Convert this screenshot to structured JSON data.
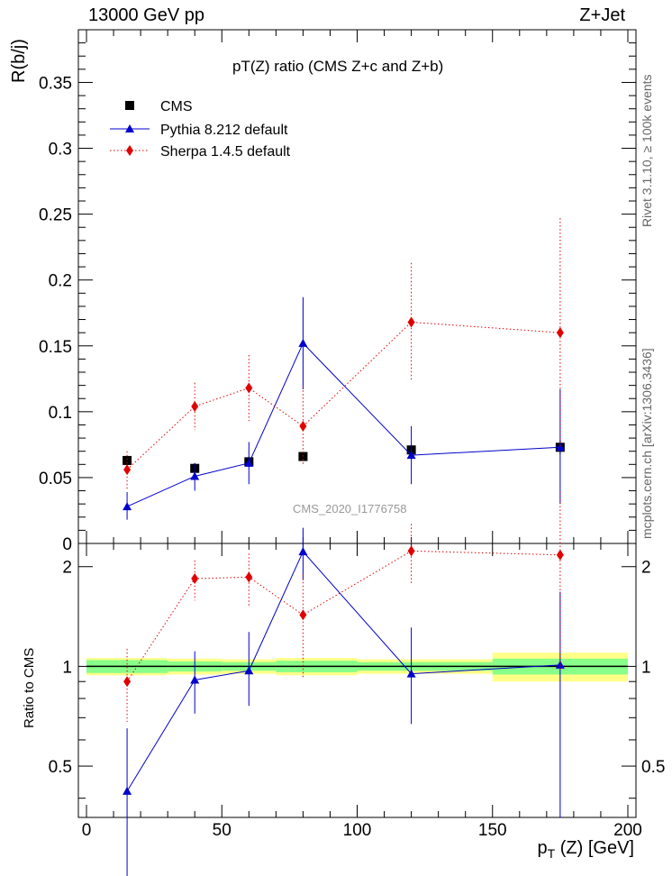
{
  "header": {
    "energy_label": "13000 GeV pp",
    "process_label": "Z+Jet"
  },
  "side_labels": {
    "rivet": "Rivet 3.1.10, ≥ 100k events",
    "mcplots": "mcplots.cern.ch [arXiv:1306.3436]"
  },
  "watermark": "CMS_2020_I1776758",
  "colors": {
    "cms": "#000000",
    "pythia": "#0000cc",
    "sherpa": "#e00000",
    "band_outer": "#ffff88",
    "band_inner": "#88ff88"
  },
  "chart_data": [
    {
      "type": "scatter",
      "panel": "main",
      "title": "pT(Z) ratio (CMS  Z+c and Z+b)",
      "xlabel": "p_T (Z) [GeV]",
      "ylabel": "R(b/j)",
      "xlim": [
        -3,
        203
      ],
      "ylim": [
        0,
        0.39
      ],
      "yticks": [
        0,
        0.05,
        0.1,
        0.15,
        0.2,
        0.25,
        0.3,
        0.35
      ],
      "ytick_labels": [
        "0",
        "0.05",
        "0.1",
        "0.15",
        "0.2",
        "0.25",
        "0.3",
        "0.35"
      ],
      "legend_position": "top-left",
      "series": [
        {
          "name": "CMS",
          "style": "square-marker",
          "x": [
            15,
            40,
            60,
            80,
            120,
            175
          ],
          "y": [
            0.063,
            0.057,
            0.062,
            0.066,
            0.071,
            0.073
          ],
          "yerr": [
            0.003,
            0.004,
            0.004,
            0.003,
            0.004,
            0.005
          ]
        },
        {
          "name": "Pythia 8.212 default",
          "style": "triangle-solid-line",
          "x": [
            15,
            40,
            60,
            80,
            120,
            175
          ],
          "y": [
            0.028,
            0.051,
            0.061,
            0.152,
            0.067,
            0.073
          ],
          "yerr_low": [
            0.01,
            0.011,
            0.016,
            0.035,
            0.022,
            0.043
          ],
          "yerr_high": [
            0.011,
            0.01,
            0.016,
            0.035,
            0.022,
            0.044
          ]
        },
        {
          "name": "Sherpa 1.4.5 default",
          "style": "diamond-dotted-line",
          "x": [
            15,
            40,
            60,
            80,
            120,
            175
          ],
          "y": [
            0.056,
            0.104,
            0.118,
            0.089,
            0.168,
            0.16
          ],
          "yerr_low": [
            0.015,
            0.018,
            0.025,
            0.03,
            0.044,
            0.086
          ],
          "yerr_high": [
            0.014,
            0.018,
            0.025,
            0.03,
            0.045,
            0.087
          ]
        }
      ]
    },
    {
      "type": "scatter",
      "panel": "ratio",
      "xlabel": "p_T (Z) [GeV]",
      "ylabel": "Ratio to CMS",
      "xlim": [
        -3,
        203
      ],
      "ylim": [
        0.35,
        2.35
      ],
      "yticks": [
        0.5,
        1,
        2
      ],
      "ytick_labels": [
        "0.5",
        "1",
        "2"
      ],
      "xticks": [
        0,
        50,
        100,
        150,
        200
      ],
      "xtick_labels": [
        "0",
        "50",
        "100",
        "150",
        "200"
      ],
      "bands": {
        "bin_edges": [
          0,
          30,
          50,
          70,
          100,
          150,
          200
        ],
        "inner_half_width": [
          0.045,
          0.035,
          0.03,
          0.04,
          0.03,
          0.055
        ],
        "outer_half_width": [
          0.06,
          0.055,
          0.05,
          0.06,
          0.05,
          0.1
        ]
      },
      "series": [
        {
          "name": "Pythia 8.212 default",
          "style": "triangle-solid-line",
          "x": [
            15,
            40,
            60,
            80,
            120,
            175
          ],
          "y": [
            0.42,
            0.91,
            0.97,
            2.22,
            0.95,
            1.01
          ],
          "yerr_low": [
            0.24,
            0.19,
            0.21,
            0.4,
            0.28,
            0.66
          ],
          "yerr_high": [
            0.23,
            0.2,
            0.3,
            0.4,
            0.36,
            0.67
          ]
        },
        {
          "name": "Sherpa 1.4.5 default",
          "style": "diamond-dotted-line",
          "x": [
            15,
            40,
            60,
            80,
            120,
            175
          ],
          "y": [
            0.9,
            1.84,
            1.86,
            1.43,
            2.23,
            2.17
          ],
          "yerr_low": [
            0.22,
            0.26,
            0.35,
            0.51,
            0.46,
            1.2
          ],
          "yerr_high": [
            0.23,
            0.25,
            0.33,
            0.46,
            0.46,
            1.2
          ]
        }
      ]
    }
  ]
}
